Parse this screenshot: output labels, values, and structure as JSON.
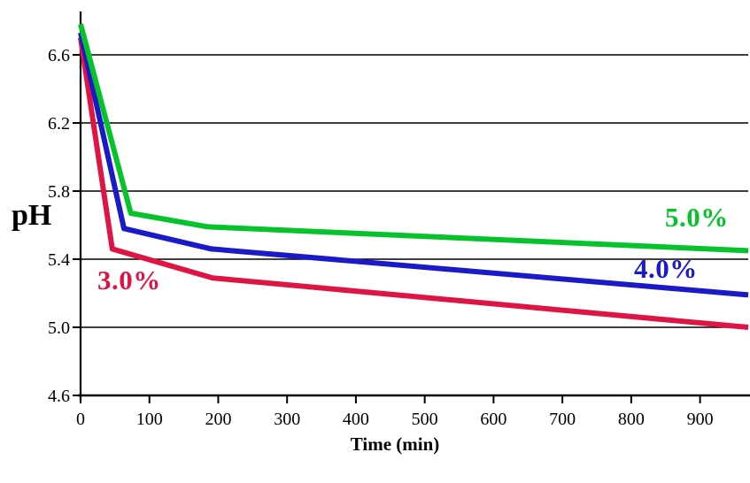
{
  "chart_data": {
    "type": "line",
    "title": "",
    "xlabel": "Time (min)",
    "ylabel": "pH",
    "xlim": [
      0,
      970
    ],
    "ylim": [
      4.6,
      6.84
    ],
    "x_ticks": [
      0,
      100,
      200,
      300,
      400,
      500,
      600,
      700,
      800,
      900
    ],
    "y_ticks": [
      4.6,
      5.0,
      5.4,
      5.8,
      6.2,
      6.6
    ],
    "grid": "horizontal gridlines at each y tick",
    "legend_position": "inline labels next to lines",
    "background_color": "#FFFFFF",
    "axis_color": "#000000",
    "series": [
      {
        "name": "3.0%",
        "color": "#DE1544",
        "points": [
          [
            0,
            6.7
          ],
          [
            46,
            5.46
          ],
          [
            192,
            5.29
          ],
          [
            970,
            5.0
          ]
        ]
      },
      {
        "name": "4.0%",
        "color": "#1A1AC8",
        "points": [
          [
            0,
            6.73
          ],
          [
            63,
            5.58
          ],
          [
            190,
            5.46
          ],
          [
            970,
            5.19
          ]
        ]
      },
      {
        "name": "5.0%",
        "color": "#06C32C",
        "points": [
          [
            0,
            6.78
          ],
          [
            73,
            5.67
          ],
          [
            185,
            5.59
          ],
          [
            970,
            5.45
          ]
        ]
      }
    ]
  }
}
